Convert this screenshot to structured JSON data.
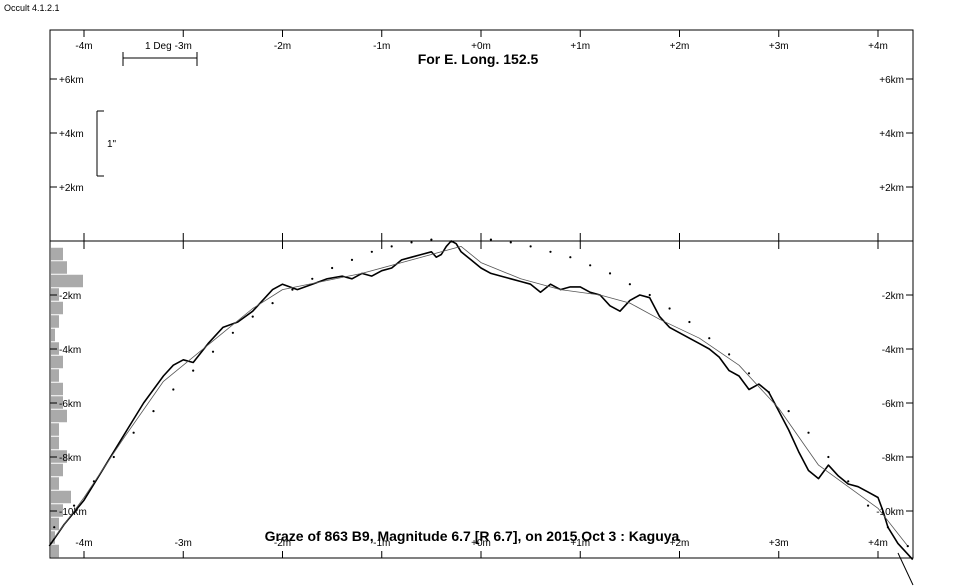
{
  "app": {
    "title": "Occult 4.1.2.1"
  },
  "chart_data": {
    "type": "line",
    "title": "For E. Long. 152.5",
    "subtitle": "Graze of  863 B9,  Magnitude 6.7 [R 6.7],  on 2015 Oct  3  :  Kaguya",
    "x_axis": {
      "unit": "minutes",
      "ticks": [
        -4,
        -3,
        -2,
        -1,
        0,
        1,
        2,
        3,
        4
      ],
      "tick_labels_top": [
        "-4m",
        "-3m",
        "-2m",
        "-1m",
        "+0m",
        "+1m",
        "+2m",
        "+3m",
        "+4m"
      ],
      "tick_labels_bottom": [
        "-4m",
        "-3m",
        "-2m",
        "-1m",
        "+0m",
        "+1m",
        "+2m",
        "+3m",
        "+4m"
      ],
      "range": [
        -4.35,
        4.35
      ]
    },
    "y_axis": {
      "unit": "km",
      "upper_ticks": [
        6,
        4,
        2
      ],
      "upper_tick_labels": [
        "+6km",
        "+4km",
        "+2km"
      ],
      "lower_ticks": [
        -2,
        -4,
        -6,
        -8,
        -10
      ],
      "lower_tick_labels": [
        "-2km",
        "-4km",
        "-6km",
        "-8km",
        "-10km"
      ],
      "range": [
        -11.5,
        7.5
      ]
    },
    "scale_bars": {
      "horizontal_label": "1 Deg",
      "horizontal_minutes": 0.75,
      "vertical_label": "1\"",
      "vertical_km": 2.4
    },
    "series": [
      {
        "role": "profile",
        "color": "#000000",
        "x": [
          -4.35,
          -4.2,
          -4.0,
          -3.8,
          -3.6,
          -3.4,
          -3.2,
          -3.1,
          -3.0,
          -2.9,
          -2.75,
          -2.6,
          -2.45,
          -2.3,
          -2.2,
          -2.1,
          -2.0,
          -1.85,
          -1.7,
          -1.55,
          -1.4,
          -1.3,
          -1.2,
          -1.1,
          -1.0,
          -0.9,
          -0.8,
          -0.7,
          -0.6,
          -0.5,
          -0.45,
          -0.4,
          -0.35,
          -0.3,
          -0.25,
          -0.2,
          -0.1,
          0.0,
          0.1,
          0.2,
          0.3,
          0.4,
          0.5,
          0.6,
          0.7,
          0.8,
          0.9,
          1.0,
          1.1,
          1.2,
          1.3,
          1.4,
          1.5,
          1.6,
          1.7,
          1.8,
          1.9,
          2.0,
          2.1,
          2.2,
          2.3,
          2.4,
          2.5,
          2.6,
          2.7,
          2.8,
          2.9,
          3.0,
          3.1,
          3.2,
          3.3,
          3.4,
          3.5,
          3.6,
          3.7,
          3.8,
          3.9,
          4.0,
          4.05,
          4.1,
          4.2,
          4.3,
          4.35
        ],
        "y": [
          -11.3,
          -10.5,
          -9.6,
          -8.4,
          -7.2,
          -6.0,
          -5.0,
          -4.6,
          -4.4,
          -4.5,
          -3.8,
          -3.2,
          -3.0,
          -2.6,
          -2.2,
          -1.8,
          -1.6,
          -1.8,
          -1.6,
          -1.4,
          -1.3,
          -1.4,
          -1.2,
          -1.3,
          -1.1,
          -1.0,
          -0.7,
          -0.6,
          -0.5,
          -0.4,
          -0.6,
          -0.5,
          -0.2,
          0.0,
          -0.1,
          -0.4,
          -0.7,
          -1.0,
          -1.2,
          -1.3,
          -1.4,
          -1.5,
          -1.6,
          -1.9,
          -1.6,
          -1.8,
          -1.7,
          -1.7,
          -1.9,
          -2.0,
          -2.4,
          -2.6,
          -2.2,
          -2.0,
          -2.1,
          -2.8,
          -3.2,
          -3.4,
          -3.6,
          -3.8,
          -4.0,
          -4.3,
          -4.8,
          -5.0,
          -5.5,
          -5.3,
          -5.6,
          -6.3,
          -7.0,
          -7.8,
          -8.5,
          -8.8,
          -8.3,
          -8.7,
          -9.0,
          -9.1,
          -9.3,
          -9.5,
          -10.0,
          -10.6,
          -11.2,
          -11.6,
          -11.8
        ]
      },
      {
        "role": "smoothed",
        "color": "#555555",
        "x": [
          -4.3,
          -4.0,
          -3.6,
          -3.2,
          -2.9,
          -2.6,
          -2.3,
          -2.0,
          -1.6,
          -1.2,
          -0.8,
          -0.4,
          -0.2,
          0.0,
          0.4,
          0.8,
          1.2,
          1.5,
          1.8,
          2.2,
          2.6,
          3.0,
          3.4,
          3.7,
          4.0,
          4.3
        ],
        "y": [
          -11.0,
          -9.5,
          -7.3,
          -5.2,
          -4.3,
          -3.4,
          -2.5,
          -1.8,
          -1.5,
          -1.2,
          -0.8,
          -0.4,
          -0.2,
          -0.8,
          -1.4,
          -1.8,
          -2.0,
          -2.3,
          -2.9,
          -3.6,
          -4.6,
          -6.2,
          -8.3,
          -9.1,
          -9.9,
          -11.3
        ]
      },
      {
        "role": "dotted-limb",
        "color": "#000000",
        "x": [
          -4.3,
          -4.1,
          -3.9,
          -3.7,
          -3.5,
          -3.3,
          -3.1,
          -2.9,
          -2.7,
          -2.5,
          -2.3,
          -2.1,
          -1.9,
          -1.7,
          -1.5,
          -1.3,
          -1.1,
          -0.9,
          -0.7,
          -0.5,
          -0.3,
          -0.1,
          0.1,
          0.3,
          0.5,
          0.7,
          0.9,
          1.1,
          1.3,
          1.5,
          1.7,
          1.9,
          2.1,
          2.3,
          2.5,
          2.7,
          2.9,
          3.1,
          3.3,
          3.5,
          3.7,
          3.9,
          4.1,
          4.3
        ],
        "y": [
          -10.6,
          -9.8,
          -8.9,
          -8.0,
          -7.1,
          -6.3,
          -5.5,
          -4.8,
          -4.1,
          -3.4,
          -2.8,
          -2.3,
          -1.8,
          -1.4,
          -1.0,
          -0.7,
          -0.4,
          -0.2,
          -0.05,
          0.05,
          0.1,
          0.1,
          0.05,
          -0.05,
          -0.2,
          -0.4,
          -0.6,
          -0.9,
          -1.2,
          -1.6,
          -2.0,
          -2.5,
          -3.0,
          -3.6,
          -4.2,
          -4.9,
          -5.6,
          -6.3,
          -7.1,
          -8.0,
          -8.9,
          -9.8,
          -10.6,
          -11.3
        ]
      }
    ],
    "histogram": {
      "side": "left",
      "color": "#aaaaaa",
      "y": [
        -0.5,
        -1.0,
        -1.5,
        -2.0,
        -2.5,
        -3.0,
        -3.5,
        -4.0,
        -4.5,
        -5.0,
        -5.5,
        -6.0,
        -6.5,
        -7.0,
        -7.5,
        -8.0,
        -8.5,
        -9.0,
        -9.5,
        -10.0,
        -10.5,
        -11.0,
        -11.5
      ],
      "counts": [
        3,
        4,
        8,
        2,
        3,
        2,
        1,
        2,
        3,
        2,
        3,
        3,
        4,
        2,
        2,
        4,
        3,
        2,
        5,
        3,
        2,
        1,
        2
      ]
    },
    "grid": false,
    "legend": "none"
  }
}
